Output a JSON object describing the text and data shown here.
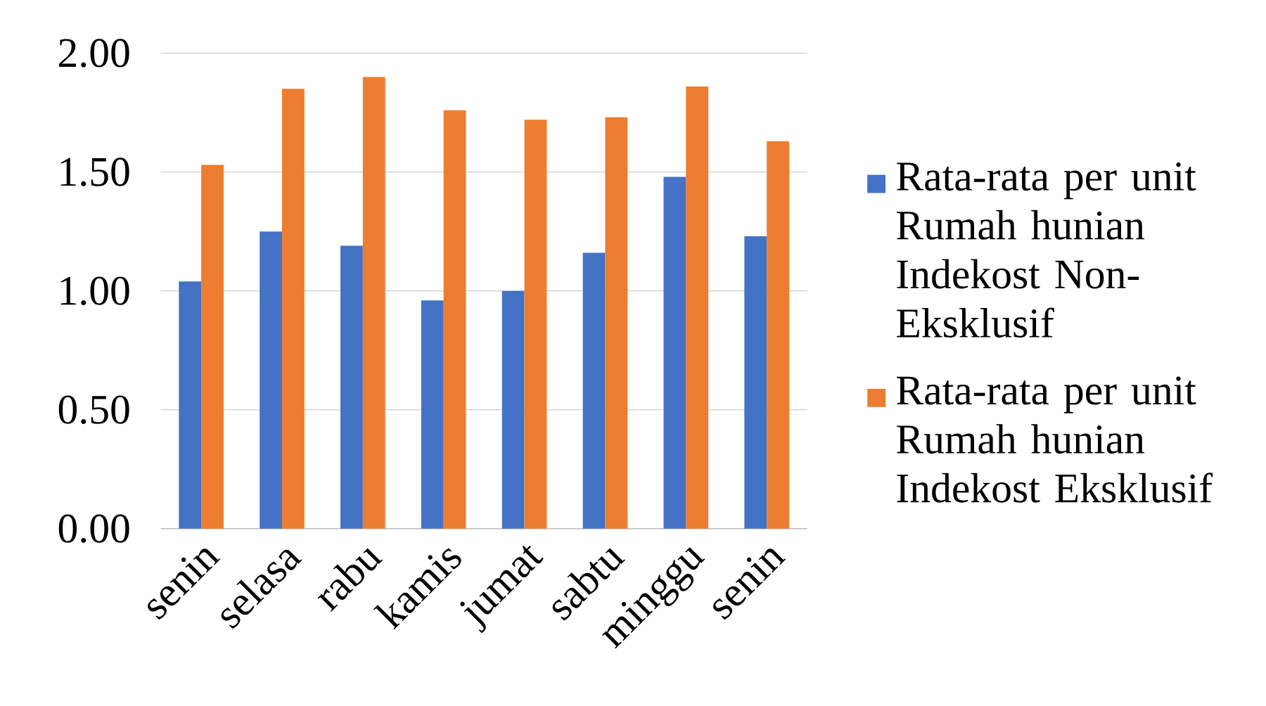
{
  "chart_data": {
    "type": "bar",
    "categories": [
      "senin",
      "selasa",
      "rabu",
      "kamis",
      "jumat",
      "sabtu",
      "minggu",
      "senin"
    ],
    "series": [
      {
        "name": "Rata-rata per unit Rumah hunian Indekost Non-Eksklusif",
        "color": "#4472c4",
        "values": [
          1.04,
          1.25,
          1.19,
          0.96,
          1.0,
          1.16,
          1.48,
          1.23
        ]
      },
      {
        "name": "Rata-rata per unit Rumah hunian Indekost Eksklusif",
        "color": "#ed7d31",
        "values": [
          1.53,
          1.85,
          1.9,
          1.76,
          1.72,
          1.73,
          1.86,
          1.63
        ]
      }
    ],
    "ylim": [
      0,
      2
    ],
    "yticks": [
      {
        "value": 0,
        "label": "0.00"
      },
      {
        "value": 0.5,
        "label": "0.50"
      },
      {
        "value": 1,
        "label": "1.00"
      },
      {
        "value": 1.5,
        "label": "1.50"
      },
      {
        "value": 2,
        "label": "2.00"
      }
    ],
    "grid": "y",
    "legend": "right"
  }
}
